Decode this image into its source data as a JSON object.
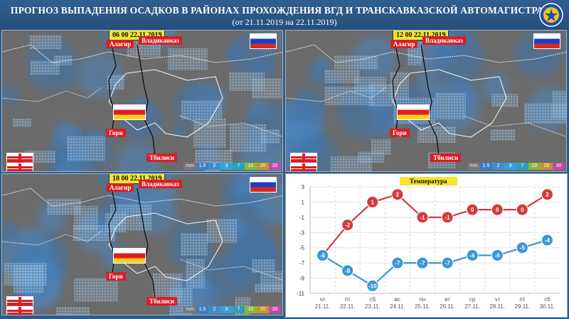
{
  "header": {
    "title": "ПРОГНОЗ ВЫПАДЕНИЯ ОСАДКОВ В РАЙОНАХ ПРОХОЖДЕНИЯ ВГД И ТРАНСКАВКАЗСКОЙ АВТОМАГИСТРАЛИ",
    "subtitle": "(от 21.11.2019 на 22.11.2019)",
    "emblem_icon": "mchs-emblem-icon"
  },
  "maps": [
    {
      "time": "06 00 22.11.2019",
      "cities": {
        "alagir": "Алагир",
        "vladikavkaz": "Владикавказ",
        "gori": "Гори",
        "tbilisi": "Тбилиси"
      }
    },
    {
      "time": "12 00 22.11.2019",
      "cities": {
        "alagir": "Алагир",
        "vladikavkaz": "Владикавказ",
        "gori": "Гори",
        "tbilisi": "Тбилиси"
      }
    },
    {
      "time": "18 00 22.11.2019",
      "cities": {
        "alagir": "Алагир",
        "vladikavkaz": "Владикавказ",
        "gori": "Гори",
        "tbilisi": "Тбилиси"
      }
    }
  ],
  "legend": {
    "unit": "mm",
    "steps": [
      "1.5",
      "2",
      "3",
      "7",
      "10",
      "20",
      "30"
    ],
    "colors": [
      "#3d7fc0",
      "#3f8fd0",
      "#38a0d8",
      "#2e9fb8",
      "#8ab83a",
      "#c9922e",
      "#c14aa8"
    ]
  },
  "chart_data": {
    "type": "line",
    "title": "Температура",
    "categories": [
      "чт 21.11.",
      "пт 22.11.",
      "сб 23.11.",
      "вс 24.11.",
      "пн 25.11.",
      "вт 26.11.",
      "ср 27.11.",
      "чт 28.11.",
      "пт 29.11.",
      "сб 30.11."
    ],
    "day_labels": [
      "чт",
      "пт",
      "сб",
      "вс",
      "пн",
      "вт",
      "ср",
      "чт",
      "пт",
      "сб"
    ],
    "date_labels": [
      "21.11.",
      "22.11.",
      "23.11.",
      "24.11.",
      "25.11.",
      "26.11.",
      "27.11.",
      "28.11.",
      "29.11.",
      "30.11."
    ],
    "series": [
      {
        "values": [
          -6,
          -2,
          1,
          2,
          -1,
          -1,
          0,
          0,
          0,
          2
        ],
        "color": "#d23c3c"
      },
      {
        "values": [
          -6,
          -8,
          -10,
          -7,
          -7,
          -7,
          -6,
          -6,
          -5,
          -4
        ],
        "color": "#3a97d4"
      }
    ],
    "ylim": [
      -11,
      3
    ],
    "yticks": [
      "3",
      "1",
      "-1",
      "-3",
      "-5",
      "-7",
      "-9",
      "-11"
    ],
    "grid": true
  }
}
